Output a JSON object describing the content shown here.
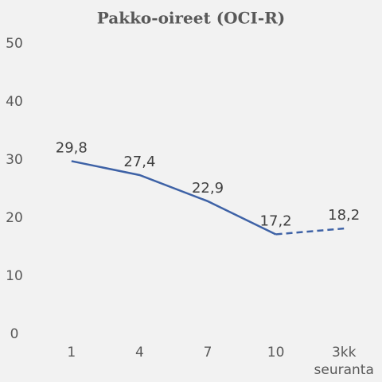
{
  "chart_data": {
    "type": "line",
    "title": "Pakko-oireet (OCI-R)",
    "categories": [
      "1",
      "4",
      "7",
      "10",
      "3kk seuranta"
    ],
    "values": [
      29.8,
      27.4,
      22.9,
      17.2,
      18.2
    ],
    "value_labels": [
      "29,8",
      "27,4",
      "22,9",
      "17,2",
      "18,2"
    ],
    "color": "#3e62a6",
    "dashed_last_segment": true,
    "ylim": [
      0,
      50
    ],
    "yticks": [
      0,
      10,
      20,
      30,
      40,
      50
    ],
    "grid": false
  }
}
